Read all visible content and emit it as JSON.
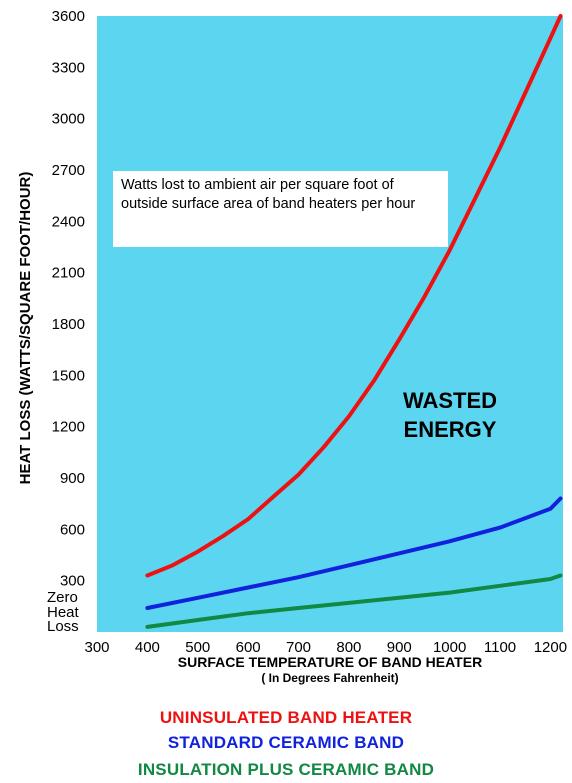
{
  "chart_data": {
    "type": "line",
    "ylabel": "HEAT LOSS (WATTS/SQUARE FOOT/HOUR)",
    "xlabel": "SURFACE TEMPERATURE OF BAND HEATER",
    "xlabel_sub": "( In Degrees Fahrenheit)",
    "annotation_box": "Watts lost to ambient air per square foot of outside surface area of band heaters per hour",
    "annotation_text": [
      "WASTED",
      "ENERGY"
    ],
    "xlim": [
      300,
      1225
    ],
    "ylim": [
      0,
      3600
    ],
    "x_ticks": [
      300,
      400,
      500,
      600,
      700,
      800,
      900,
      1000,
      1100,
      1200
    ],
    "y_ticks": [
      {
        "value": 3600,
        "label": "3600"
      },
      {
        "value": 3300,
        "label": "3300"
      },
      {
        "value": 3000,
        "label": "3000"
      },
      {
        "value": 2700,
        "label": "2700"
      },
      {
        "value": 2400,
        "label": "2400"
      },
      {
        "value": 2100,
        "label": "2100"
      },
      {
        "value": 1800,
        "label": "1800"
      },
      {
        "value": 1500,
        "label": "1500"
      },
      {
        "value": 1200,
        "label": "1200"
      },
      {
        "value": 900,
        "label": "900"
      },
      {
        "value": 600,
        "label": "600"
      },
      {
        "value": 300,
        "label": "300"
      }
    ],
    "y_zero_label": [
      "Zero",
      "Heat",
      "Loss"
    ],
    "grid": false,
    "colors": {
      "background": "#5cd6f0",
      "text": "#000000"
    },
    "series": [
      {
        "name": "UNINSULATED BAND HEATER",
        "color": "#ee1111",
        "x": [
          400,
          450,
          500,
          550,
          600,
          650,
          700,
          750,
          800,
          850,
          900,
          950,
          1000,
          1050,
          1100,
          1150,
          1200,
          1220
        ],
        "y": [
          330,
          390,
          470,
          560,
          660,
          790,
          920,
          1080,
          1260,
          1470,
          1710,
          1960,
          2230,
          2530,
          2830,
          3150,
          3470,
          3600
        ]
      },
      {
        "name": "STANDARD CERAMIC BAND",
        "color": "#1122dd",
        "x": [
          400,
          500,
          600,
          700,
          800,
          900,
          1000,
          1100,
          1200,
          1220
        ],
        "y": [
          140,
          200,
          260,
          320,
          390,
          460,
          530,
          610,
          720,
          780
        ]
      },
      {
        "name": "INSULATION PLUS CERAMIC BAND",
        "color": "#118844",
        "x": [
          400,
          500,
          600,
          700,
          800,
          900,
          1000,
          1100,
          1200,
          1220
        ],
        "y": [
          30,
          70,
          110,
          140,
          170,
          200,
          230,
          270,
          310,
          330
        ]
      }
    ],
    "legend_position": "bottom-center"
  }
}
